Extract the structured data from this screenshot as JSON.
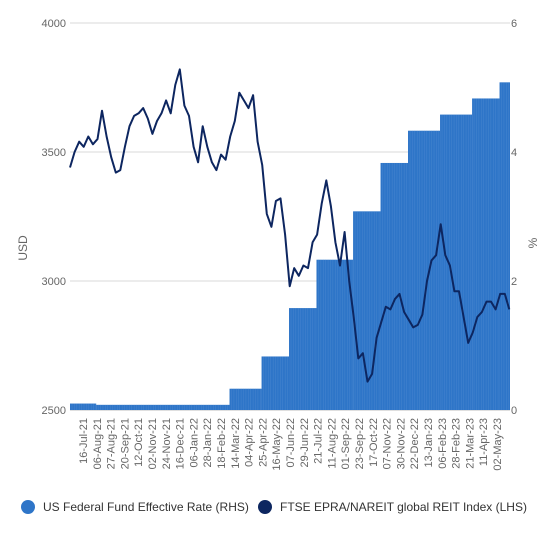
{
  "chart_data": {
    "type": "bar+line",
    "x_tick_labels": [
      "16-Jul-21",
      "06-Aug-21",
      "27-Aug-21",
      "20-Sep-21",
      "12-Oct-21",
      "02-Nov-21",
      "24-Nov-21",
      "16-Dec-21",
      "06-Jan-22",
      "28-Jan-22",
      "18-Feb-22",
      "14-Mar-22",
      "04-Apr-22",
      "25-Apr-22",
      "16-May-22",
      "07-Jun-22",
      "29-Jun-22",
      "21-Jul-22",
      "11-Aug-22",
      "01-Sep-22",
      "23-Sep-22",
      "17-Oct-22",
      "07-Nov-22",
      "30-Nov-22",
      "22-Dec-22",
      "13-Jan-23",
      "06-Feb-23",
      "28-Feb-23",
      "21-Mar-23",
      "11-Apr-23",
      "02-May-23"
    ],
    "left_axis": {
      "label": "USD",
      "min": 2500,
      "max": 4000,
      "ticks": [
        "2500",
        "3000",
        "3500",
        "4000"
      ]
    },
    "right_axis": {
      "label": "%",
      "min": 0,
      "max": 6,
      "ticks": [
        "0",
        "2",
        "4",
        "6"
      ]
    },
    "gridlines": true,
    "legend_position": "bottom",
    "series": [
      {
        "name": "US Federal Fund Effective Rate (RHS)",
        "type": "bar",
        "axis": "right",
        "color": "#2e75c8",
        "steps": [
          {
            "from": "2021-07-16",
            "to": "2021-08-25",
            "value": 0.1
          },
          {
            "from": "2021-08-25",
            "to": "2022-03-17",
            "value": 0.08
          },
          {
            "from": "2022-03-17",
            "to": "2022-05-05",
            "value": 0.33
          },
          {
            "from": "2022-05-05",
            "to": "2022-06-16",
            "value": 0.83
          },
          {
            "from": "2022-06-16",
            "to": "2022-07-28",
            "value": 1.58
          },
          {
            "from": "2022-07-28",
            "to": "2022-09-22",
            "value": 2.33
          },
          {
            "from": "2022-09-22",
            "to": "2022-11-03",
            "value": 3.08
          },
          {
            "from": "2022-11-03",
            "to": "2022-12-15",
            "value": 3.83
          },
          {
            "from": "2022-12-15",
            "to": "2023-02-02",
            "value": 4.33
          },
          {
            "from": "2023-02-02",
            "to": "2023-03-23",
            "value": 4.58
          },
          {
            "from": "2023-03-23",
            "to": "2023-05-04",
            "value": 4.83
          },
          {
            "from": "2023-05-04",
            "to": "2023-05-20",
            "value": 5.08
          }
        ]
      },
      {
        "name": "FTSE EPRA/NAREIT global REIT Index (LHS)",
        "type": "line",
        "axis": "left",
        "color": "#0d2660",
        "points": [
          [
            "2021-07-16",
            3440
          ],
          [
            "2021-07-23",
            3500
          ],
          [
            "2021-07-30",
            3540
          ],
          [
            "2021-08-06",
            3520
          ],
          [
            "2021-08-13",
            3560
          ],
          [
            "2021-08-20",
            3530
          ],
          [
            "2021-08-27",
            3550
          ],
          [
            "2021-09-03",
            3660
          ],
          [
            "2021-09-10",
            3560
          ],
          [
            "2021-09-17",
            3480
          ],
          [
            "2021-09-24",
            3420
          ],
          [
            "2021-10-01",
            3430
          ],
          [
            "2021-10-08",
            3520
          ],
          [
            "2021-10-15",
            3600
          ],
          [
            "2021-10-22",
            3640
          ],
          [
            "2021-10-29",
            3650
          ],
          [
            "2021-11-05",
            3670
          ],
          [
            "2021-11-12",
            3630
          ],
          [
            "2021-11-19",
            3570
          ],
          [
            "2021-11-26",
            3620
          ],
          [
            "2021-12-03",
            3650
          ],
          [
            "2021-12-10",
            3700
          ],
          [
            "2021-12-17",
            3650
          ],
          [
            "2021-12-24",
            3760
          ],
          [
            "2021-12-31",
            3820
          ],
          [
            "2022-01-07",
            3680
          ],
          [
            "2022-01-14",
            3640
          ],
          [
            "2022-01-21",
            3520
          ],
          [
            "2022-01-28",
            3460
          ],
          [
            "2022-02-04",
            3600
          ],
          [
            "2022-02-11",
            3520
          ],
          [
            "2022-02-18",
            3460
          ],
          [
            "2022-02-25",
            3430
          ],
          [
            "2022-03-04",
            3490
          ],
          [
            "2022-03-11",
            3470
          ],
          [
            "2022-03-18",
            3560
          ],
          [
            "2022-03-25",
            3620
          ],
          [
            "2022-04-01",
            3730
          ],
          [
            "2022-04-08",
            3700
          ],
          [
            "2022-04-15",
            3670
          ],
          [
            "2022-04-22",
            3720
          ],
          [
            "2022-04-29",
            3540
          ],
          [
            "2022-05-06",
            3450
          ],
          [
            "2022-05-13",
            3260
          ],
          [
            "2022-05-20",
            3210
          ],
          [
            "2022-05-27",
            3310
          ],
          [
            "2022-06-03",
            3320
          ],
          [
            "2022-06-10",
            3180
          ],
          [
            "2022-06-17",
            2980
          ],
          [
            "2022-06-24",
            3050
          ],
          [
            "2022-07-01",
            3020
          ],
          [
            "2022-07-08",
            3060
          ],
          [
            "2022-07-15",
            3050
          ],
          [
            "2022-07-22",
            3150
          ],
          [
            "2022-07-29",
            3180
          ],
          [
            "2022-08-05",
            3300
          ],
          [
            "2022-08-12",
            3390
          ],
          [
            "2022-08-19",
            3290
          ],
          [
            "2022-08-26",
            3150
          ],
          [
            "2022-09-02",
            3060
          ],
          [
            "2022-09-09",
            3190
          ],
          [
            "2022-09-16",
            3000
          ],
          [
            "2022-09-23",
            2860
          ],
          [
            "2022-09-30",
            2700
          ],
          [
            "2022-10-07",
            2720
          ],
          [
            "2022-10-14",
            2610
          ],
          [
            "2022-10-21",
            2640
          ],
          [
            "2022-10-28",
            2780
          ],
          [
            "2022-11-04",
            2840
          ],
          [
            "2022-11-11",
            2900
          ],
          [
            "2022-11-18",
            2890
          ],
          [
            "2022-11-25",
            2930
          ],
          [
            "2022-12-02",
            2950
          ],
          [
            "2022-12-09",
            2880
          ],
          [
            "2022-12-16",
            2850
          ],
          [
            "2022-12-23",
            2820
          ],
          [
            "2022-12-30",
            2830
          ],
          [
            "2023-01-06",
            2870
          ],
          [
            "2023-01-13",
            3000
          ],
          [
            "2023-01-20",
            3080
          ],
          [
            "2023-01-27",
            3100
          ],
          [
            "2023-02-03",
            3220
          ],
          [
            "2023-02-10",
            3100
          ],
          [
            "2023-02-17",
            3060
          ],
          [
            "2023-02-24",
            2960
          ],
          [
            "2023-03-03",
            2960
          ],
          [
            "2023-03-10",
            2860
          ],
          [
            "2023-03-17",
            2760
          ],
          [
            "2023-03-24",
            2800
          ],
          [
            "2023-03-31",
            2860
          ],
          [
            "2023-04-07",
            2880
          ],
          [
            "2023-04-14",
            2920
          ],
          [
            "2023-04-21",
            2920
          ],
          [
            "2023-04-28",
            2890
          ],
          [
            "2023-05-05",
            2950
          ],
          [
            "2023-05-12",
            2950
          ],
          [
            "2023-05-19",
            2890
          ]
        ]
      }
    ]
  },
  "legend": {
    "items": [
      {
        "label": "US Federal Fund Effective Rate (RHS)",
        "color": "#2e75c8"
      },
      {
        "label": "FTSE EPRA/NAREIT global REIT Index (LHS)",
        "color": "#0d2660"
      }
    ]
  },
  "colors": {
    "grid": "#d9d9d9",
    "axis_text": "#666666"
  }
}
